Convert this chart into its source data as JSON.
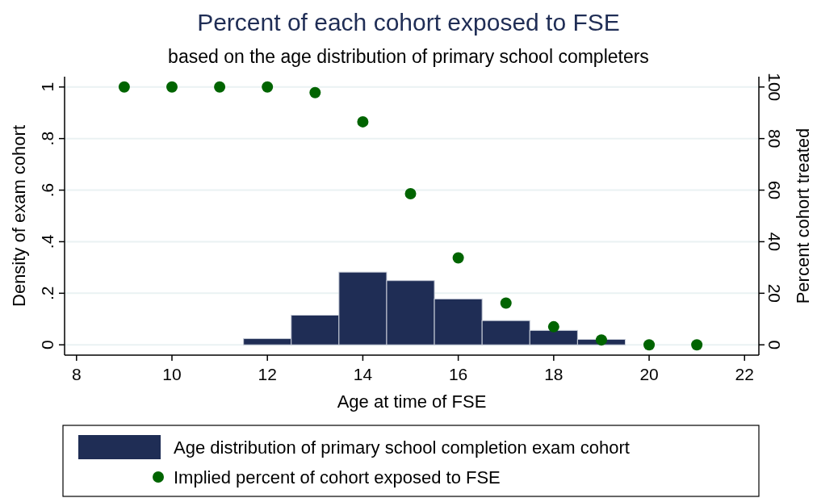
{
  "chart_data": {
    "type": "histogram",
    "title": "Percent of each cohort exposed to FSE",
    "subtitle": "based on the age distribution of primary school completers",
    "xlabel": "Age at time of FSE",
    "ylabel": "Density of exam cohort",
    "y2label": "Percent cohort treated",
    "bins": [
      11.5,
      12.5,
      13.5,
      14.5,
      15.5,
      16.5,
      17.5,
      18.5,
      19.5
    ],
    "series": [
      {
        "name": "Age distribution of primary school completion exam cohort",
        "color": "#1f2d55",
        "values": [
          0.024,
          0.115,
          0.282,
          0.249,
          0.178,
          0.094,
          0.056,
          0.021
        ]
      },
      {
        "name": "Implied percent of cohort exposed to FSE",
        "type": "scatter",
        "axis": "y2",
        "color": "#006400",
        "x": [
          9,
          10,
          11,
          12,
          13,
          14,
          15,
          16,
          17,
          18,
          19,
          20,
          21
        ],
        "values": [
          100,
          100,
          100,
          100,
          97.8,
          86.5,
          58.6,
          33.7,
          16.2,
          7.0,
          1.9,
          0,
          0
        ]
      }
    ],
    "xlim": [
      7.75,
      22.3
    ],
    "xticks": [
      8,
      10,
      12,
      14,
      16,
      18,
      20,
      22
    ],
    "ylim": [
      -0.04,
      1.04
    ],
    "yticks": [
      {
        "value": 0,
        "label": "0"
      },
      {
        "value": 0.2,
        "label": ".2"
      },
      {
        "value": 0.4,
        "label": ".4"
      },
      {
        "value": 0.6,
        "label": ".6"
      },
      {
        "value": 0.8,
        "label": ".8"
      },
      {
        "value": 1,
        "label": "1"
      }
    ],
    "y2lim": [
      -4,
      104
    ],
    "y2ticks": [
      0,
      20,
      40,
      60,
      80,
      100
    ],
    "grid": "y",
    "legend": "bottom",
    "marker": "circle"
  }
}
